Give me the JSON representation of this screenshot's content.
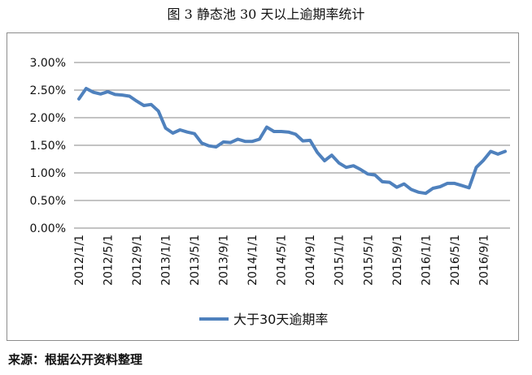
{
  "figure": {
    "title": "图 3  静态池 30 天以上逾期率统计",
    "source": "来源：根据公开资料整理"
  },
  "chart_data": {
    "type": "line",
    "title": "",
    "xlabel": "",
    "ylabel": "",
    "ylim": [
      0,
      0.03
    ],
    "grid": "horizontal",
    "legend_position": "bottom",
    "y_tick_labels": [
      "0.00%",
      "0.50%",
      "1.00%",
      "1.50%",
      "2.00%",
      "2.50%",
      "3.00%"
    ],
    "x_tick_labels": [
      "2012/1/1",
      "2012/5/1",
      "2012/9/1",
      "2013/1/1",
      "2013/5/1",
      "2013/9/1",
      "2014/1/1",
      "2014/5/1",
      "2014/9/1",
      "2015/1/1",
      "2015/5/1",
      "2015/9/1",
      "2016/1/1",
      "2016/5/1",
      "2016/9/1"
    ],
    "x": [
      "2012/1/1",
      "2012/2/1",
      "2012/3/1",
      "2012/4/1",
      "2012/5/1",
      "2012/6/1",
      "2012/7/1",
      "2012/8/1",
      "2012/9/1",
      "2012/10/1",
      "2012/11/1",
      "2012/12/1",
      "2013/1/1",
      "2013/2/1",
      "2013/3/1",
      "2013/4/1",
      "2013/5/1",
      "2013/6/1",
      "2013/7/1",
      "2013/8/1",
      "2013/9/1",
      "2013/10/1",
      "2013/11/1",
      "2013/12/1",
      "2014/1/1",
      "2014/2/1",
      "2014/3/1",
      "2014/4/1",
      "2014/5/1",
      "2014/6/1",
      "2014/7/1",
      "2014/8/1",
      "2014/9/1",
      "2014/10/1",
      "2014/11/1",
      "2014/12/1",
      "2015/1/1",
      "2015/2/1",
      "2015/3/1",
      "2015/4/1",
      "2015/5/1",
      "2015/6/1",
      "2015/7/1",
      "2015/8/1",
      "2015/9/1",
      "2015/10/1",
      "2015/11/1",
      "2015/12/1",
      "2016/1/1",
      "2016/2/1",
      "2016/3/1",
      "2016/4/1",
      "2016/5/1",
      "2016/6/1",
      "2016/7/1",
      "2016/8/1",
      "2016/9/1",
      "2016/10/1",
      "2016/11/1",
      "2016/12/1"
    ],
    "series": [
      {
        "name": "大于30天逾期率",
        "color": "#4f81bd",
        "values": [
          0.0234,
          0.0253,
          0.0246,
          0.0243,
          0.0247,
          0.0242,
          0.0241,
          0.0239,
          0.023,
          0.0222,
          0.0224,
          0.0212,
          0.0181,
          0.0172,
          0.0178,
          0.0174,
          0.0171,
          0.0154,
          0.0149,
          0.0147,
          0.0156,
          0.0155,
          0.0161,
          0.0157,
          0.0157,
          0.0161,
          0.0183,
          0.0175,
          0.0175,
          0.0174,
          0.017,
          0.0158,
          0.0159,
          0.0137,
          0.0122,
          0.0132,
          0.0118,
          0.011,
          0.0113,
          0.0106,
          0.0098,
          0.0096,
          0.0084,
          0.0083,
          0.0074,
          0.008,
          0.007,
          0.0065,
          0.0063,
          0.0072,
          0.0075,
          0.0081,
          0.0081,
          0.0077,
          0.0073,
          0.011,
          0.0123,
          0.0139,
          0.0134,
          0.0139
        ]
      }
    ]
  }
}
